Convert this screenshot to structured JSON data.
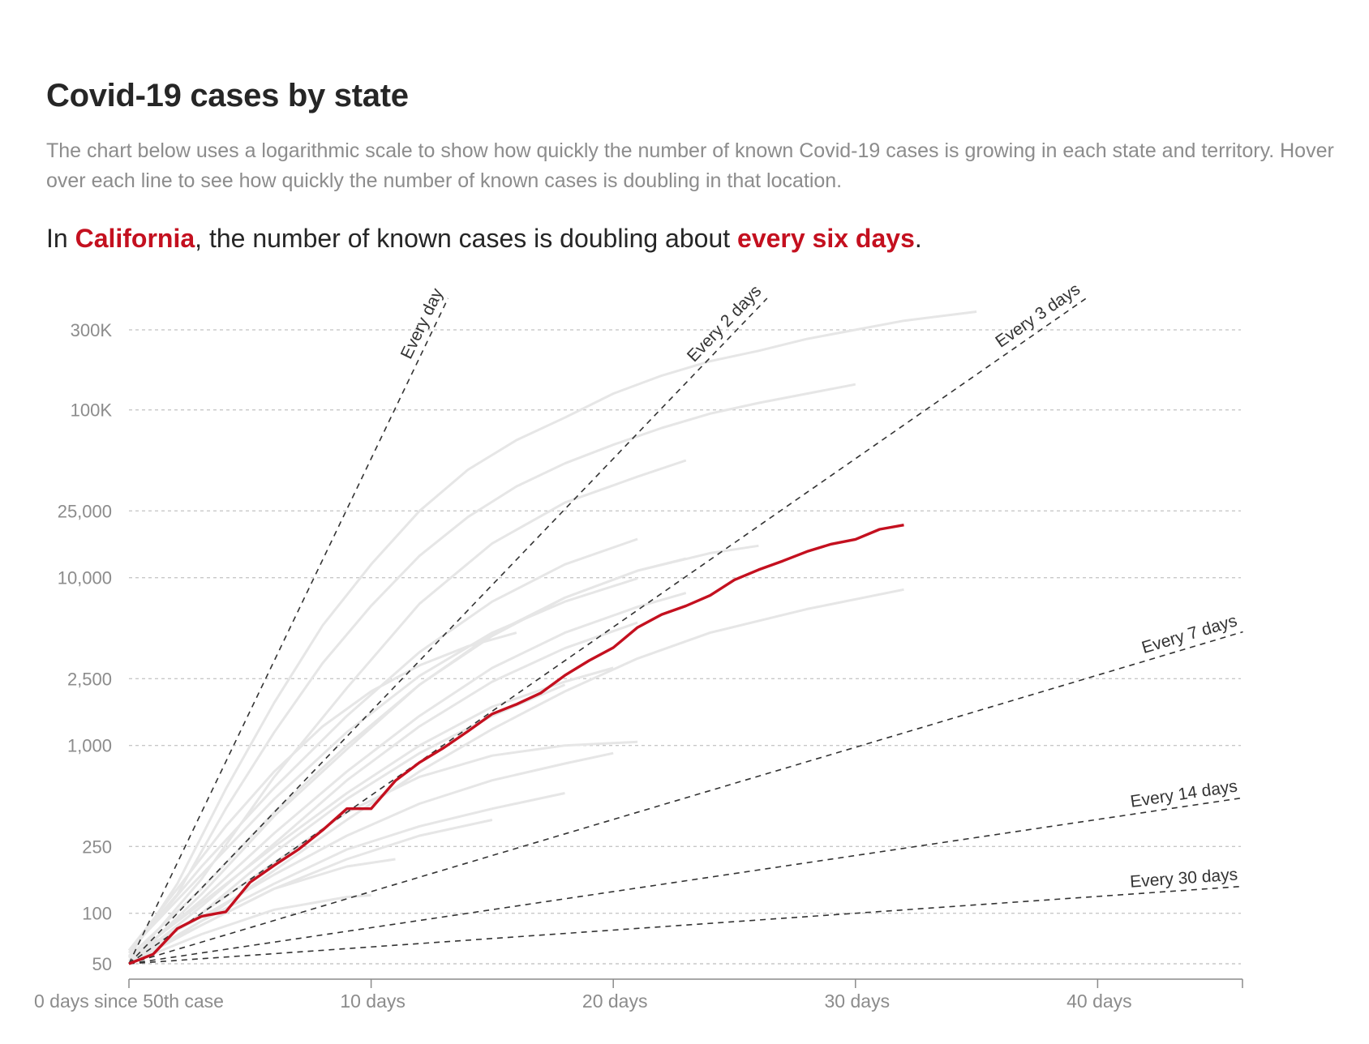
{
  "title": "Covid-19 cases by state",
  "description": "The chart below uses a logarithmic scale to show how quickly the number of known Covid-19 cases is growing in each state and territory. Hover over each line to see how quickly the number of known cases is doubling in that location.",
  "headline": {
    "prefix": "In ",
    "state": "California",
    "middle": ", the number of known cases is doubling about ",
    "rate": "every six days",
    "suffix": "."
  },
  "colors": {
    "highlight": "#c4101f",
    "other_states": "#e6e6e6",
    "reference_lines": "#333333",
    "text_muted": "#8c8c8c"
  },
  "chart_data": {
    "type": "line",
    "y_scale": "log",
    "xlim": [
      0,
      46
    ],
    "ylim": [
      50,
      400000
    ],
    "y_ticks": [
      {
        "value": 50,
        "label": "50"
      },
      {
        "value": 100,
        "label": "100"
      },
      {
        "value": 250,
        "label": "250"
      },
      {
        "value": 1000,
        "label": "1,000"
      },
      {
        "value": 2500,
        "label": "2,500"
      },
      {
        "value": 10000,
        "label": "10,000"
      },
      {
        "value": 25000,
        "label": "25,000"
      },
      {
        "value": 100000,
        "label": "100K"
      },
      {
        "value": 300000,
        "label": "300K"
      }
    ],
    "x_ticks": [
      {
        "value": 0,
        "label": "0 days since 50th case"
      },
      {
        "value": 10,
        "label": "10 days"
      },
      {
        "value": 20,
        "label": "20 days"
      },
      {
        "value": 30,
        "label": "30 days"
      },
      {
        "value": 40,
        "label": "40 days"
      }
    ],
    "grid": true,
    "reference_lines": [
      {
        "label": "Every day",
        "doubling_days": 1
      },
      {
        "label": "Every 2 days",
        "doubling_days": 2
      },
      {
        "label": "Every 3 days",
        "doubling_days": 3
      },
      {
        "label": "Every 7 days",
        "doubling_days": 7
      },
      {
        "label": "Every 14 days",
        "doubling_days": 14
      },
      {
        "label": "Every 30 days",
        "doubling_days": 30
      }
    ],
    "highlight_series": {
      "name": "California",
      "x": [
        0,
        1,
        2,
        3,
        4,
        5,
        6,
        7,
        8,
        9,
        10,
        11,
        12,
        13,
        14,
        15,
        16,
        17,
        18,
        19,
        20,
        21,
        22,
        23,
        24,
        25,
        26,
        27,
        28,
        29,
        30,
        31,
        32
      ],
      "y": [
        50,
        57,
        81,
        96,
        102,
        153,
        193,
        240,
        313,
        420,
        420,
        616,
        792,
        969,
        1216,
        1541,
        1760,
        2051,
        2617,
        3205,
        3827,
        5048,
        6032,
        6789,
        7837,
        9707,
        11155,
        12569,
        14323,
        15847,
        16926,
        19431,
        20608
      ]
    },
    "other_series": [
      {
        "x": [
          0,
          2,
          4,
          6,
          8,
          10,
          12,
          14,
          16,
          18,
          20,
          22,
          24,
          26,
          28,
          30,
          32,
          35
        ],
        "y": [
          55,
          150,
          550,
          1800,
          5200,
          12000,
          25000,
          44000,
          66000,
          90000,
          125000,
          160000,
          195000,
          225000,
          265000,
          300000,
          340000,
          385000
        ]
      },
      {
        "x": [
          0,
          2,
          4,
          6,
          8,
          10,
          12,
          14,
          16,
          18,
          20,
          22,
          24,
          26,
          28,
          30
        ],
        "y": [
          60,
          130,
          420,
          1200,
          3100,
          6800,
          13500,
          23000,
          35000,
          48000,
          62000,
          78000,
          95000,
          110000,
          125000,
          142000
        ]
      },
      {
        "x": [
          0,
          3,
          6,
          9,
          12,
          15,
          18,
          21,
          23
        ],
        "y": [
          50,
          160,
          650,
          2200,
          7000,
          16000,
          28000,
          40000,
          50000
        ]
      },
      {
        "x": [
          0,
          3,
          6,
          9,
          12,
          15,
          18,
          21
        ],
        "y": [
          58,
          190,
          560,
          1500,
          3600,
          7200,
          12000,
          17000
        ]
      },
      {
        "x": [
          0,
          3,
          6,
          9,
          12,
          15,
          18,
          21,
          23
        ],
        "y": [
          50,
          130,
          380,
          950,
          2300,
          4500,
          7600,
          11000,
          13000
        ]
      },
      {
        "x": [
          0,
          3,
          6,
          9,
          12,
          15,
          18,
          21,
          24,
          26
        ],
        "y": [
          55,
          140,
          400,
          1000,
          2300,
          4600,
          7600,
          11000,
          14000,
          15500
        ]
      },
      {
        "x": [
          0,
          3,
          6,
          9,
          12,
          15,
          18,
          21,
          23
        ],
        "y": [
          52,
          120,
          300,
          700,
          1500,
          2900,
          4700,
          6700,
          8100
        ]
      },
      {
        "x": [
          0,
          3,
          6,
          9,
          12,
          15,
          18,
          21
        ],
        "y": [
          50,
          110,
          260,
          620,
          1300,
          2400,
          3800,
          5400
        ]
      },
      {
        "x": [
          0,
          3,
          6,
          9,
          12,
          15,
          18,
          20
        ],
        "y": [
          54,
          115,
          250,
          520,
          1000,
          1700,
          2400,
          2900
        ]
      },
      {
        "x": [
          0,
          3,
          6,
          9,
          12,
          15,
          18,
          21,
          24,
          28,
          32
        ],
        "y": [
          50,
          90,
          180,
          360,
          700,
          1250,
          2100,
          3300,
          4700,
          6500,
          8500
        ]
      },
      {
        "x": [
          0,
          3,
          6,
          9,
          12,
          15,
          18,
          21
        ],
        "y": [
          50,
          100,
          200,
          400,
          650,
          870,
          1000,
          1050
        ]
      },
      {
        "x": [
          0,
          3,
          6,
          9,
          12,
          15,
          18,
          20
        ],
        "y": [
          56,
          95,
          170,
          290,
          450,
          620,
          780,
          900
        ]
      },
      {
        "x": [
          0,
          3,
          6,
          9,
          12,
          15,
          18
        ],
        "y": [
          50,
          90,
          150,
          240,
          330,
          420,
          520
        ]
      },
      {
        "x": [
          0,
          3,
          6,
          9,
          11
        ],
        "y": [
          52,
          85,
          140,
          190,
          210
        ]
      },
      {
        "x": [
          0,
          3,
          6,
          9,
          12,
          15,
          18
        ],
        "y": [
          50,
          100,
          230,
          480,
          900,
          1500,
          2300
        ]
      },
      {
        "x": [
          0,
          3,
          6,
          9,
          12,
          15,
          18,
          21
        ],
        "y": [
          60,
          170,
          480,
          1200,
          2600,
          4700,
          7200,
          9900
        ]
      },
      {
        "x": [
          0,
          2,
          4,
          6,
          8,
          10,
          12,
          14,
          16
        ],
        "y": [
          60,
          140,
          330,
          700,
          1300,
          2100,
          3000,
          3900,
          4700
        ]
      },
      {
        "x": [
          0,
          3,
          6,
          9,
          12,
          15
        ],
        "y": [
          50,
          85,
          140,
          210,
          290,
          360
        ]
      },
      {
        "x": [
          0,
          3,
          6,
          9,
          10
        ],
        "y": [
          50,
          75,
          105,
          125,
          128
        ]
      }
    ]
  }
}
